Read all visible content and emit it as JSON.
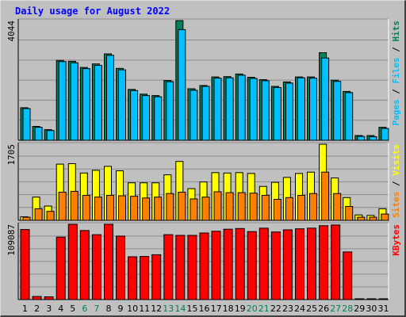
{
  "title": "Daily usage for August 2022",
  "colors": {
    "hits": "#00805c",
    "files": "#00c0ff",
    "pages": "#00c0ff",
    "visits": "#ffff00",
    "sites": "#ff8000",
    "kbytes": "#ff0000",
    "title": "#0000ff",
    "plot_bg": "#c0c0c0"
  },
  "chart_data": [
    {
      "type": "bar",
      "panel": "top",
      "max_label": "4044",
      "ylim": [
        0,
        4044
      ],
      "grid": true,
      "legend": [
        {
          "text": "Pages",
          "color": "#00c0ff"
        },
        {
          "text": " / ",
          "color": "#000000"
        },
        {
          "text": "Files",
          "color": "#00c0ff"
        },
        {
          "text": " / ",
          "color": "#000000"
        },
        {
          "text": "Hits",
          "color": "#00805c"
        }
      ],
      "categories": [
        "1",
        "2",
        "3",
        "4",
        "5",
        "6",
        "7",
        "8",
        "9",
        "10",
        "11",
        "12",
        "13",
        "14",
        "15",
        "16",
        "17",
        "18",
        "19",
        "20",
        "21",
        "22",
        "23",
        "24",
        "25",
        "26",
        "27",
        "28",
        "29",
        "30",
        "31"
      ],
      "series": [
        {
          "name": "Hits",
          "color": "#00805c",
          "values": [
            1100,
            470,
            360,
            2700,
            2670,
            2460,
            2580,
            2920,
            2430,
            1720,
            1560,
            1510,
            2020,
            4044,
            1740,
            1850,
            2140,
            2150,
            2240,
            2130,
            2050,
            1820,
            1970,
            2140,
            2140,
            2960,
            2030,
            1650,
            160,
            160,
            440
          ]
        },
        {
          "name": "Files",
          "color": "#00c0ff",
          "values": [
            1070,
            440,
            330,
            2660,
            2620,
            2420,
            2530,
            2870,
            2380,
            1680,
            1510,
            1470,
            1980,
            3740,
            1690,
            1820,
            2100,
            2110,
            2200,
            2090,
            2010,
            1780,
            1930,
            2110,
            2100,
            2780,
            1990,
            1610,
            130,
            120,
            400
          ]
        }
      ]
    },
    {
      "type": "bar",
      "panel": "middle",
      "max_label": "1705",
      "ylim": [
        0,
        1705
      ],
      "grid": true,
      "legend": [
        {
          "text": "Sites",
          "color": "#ff8000"
        },
        {
          "text": " / ",
          "color": "#000000"
        },
        {
          "text": "Visits",
          "color": "#ffff00"
        }
      ],
      "categories": [
        "1",
        "2",
        "3",
        "4",
        "5",
        "6",
        "7",
        "8",
        "9",
        "10",
        "11",
        "12",
        "13",
        "14",
        "15",
        "16",
        "17",
        "18",
        "19",
        "20",
        "21",
        "22",
        "23",
        "24",
        "25",
        "26",
        "27",
        "28",
        "29",
        "30",
        "31"
      ],
      "series": [
        {
          "name": "Visits",
          "color": "#ffff00",
          "values": [
            80,
            520,
            320,
            1260,
            1270,
            1060,
            1120,
            1210,
            1110,
            840,
            840,
            840,
            1020,
            1320,
            710,
            860,
            1070,
            1060,
            1070,
            1050,
            760,
            850,
            960,
            1050,
            1080,
            1705,
            950,
            510,
            120,
            110,
            260
          ]
        },
        {
          "name": "Sites",
          "color": "#ff8000",
          "values": [
            70,
            260,
            200,
            630,
            650,
            560,
            520,
            560,
            550,
            540,
            500,
            520,
            600,
            630,
            480,
            520,
            640,
            620,
            620,
            610,
            560,
            470,
            510,
            560,
            600,
            1080,
            600,
            310,
            70,
            70,
            140
          ]
        }
      ]
    },
    {
      "type": "bar",
      "panel": "bottom",
      "max_label": "109087",
      "ylim": [
        0,
        109087
      ],
      "grid": true,
      "legend": [
        {
          "text": "KBytes",
          "color": "#ff0000"
        }
      ],
      "categories": [
        "1",
        "2",
        "3",
        "4",
        "5",
        "6",
        "7",
        "8",
        "9",
        "10",
        "11",
        "12",
        "13",
        "14",
        "15",
        "16",
        "17",
        "18",
        "19",
        "20",
        "21",
        "22",
        "23",
        "24",
        "25",
        "26",
        "27",
        "28",
        "29",
        "30",
        "31"
      ],
      "series": [
        {
          "name": "KBytes",
          "color": "#ff0000",
          "values": [
            101500,
            4500,
            4000,
            90500,
            109087,
            100000,
            94000,
            109087,
            92000,
            62000,
            62500,
            65000,
            94000,
            93000,
            93000,
            96500,
            99000,
            102000,
            103000,
            98500,
            103500,
            98000,
            101000,
            102500,
            103500,
            107000,
            108000,
            69000,
            800,
            800,
            1000
          ]
        }
      ]
    }
  ],
  "x_labels": [
    {
      "text": "1",
      "color": "#000000"
    },
    {
      "text": "2",
      "color": "#000000"
    },
    {
      "text": "3",
      "color": "#000000"
    },
    {
      "text": "4",
      "color": "#000000"
    },
    {
      "text": "5",
      "color": "#000000"
    },
    {
      "text": "6",
      "color": "#00805c"
    },
    {
      "text": "7",
      "color": "#00805c"
    },
    {
      "text": "8",
      "color": "#000000"
    },
    {
      "text": "9",
      "color": "#000000"
    },
    {
      "text": "10",
      "color": "#000000"
    },
    {
      "text": "11",
      "color": "#000000"
    },
    {
      "text": "12",
      "color": "#000000"
    },
    {
      "text": "13",
      "color": "#00805c"
    },
    {
      "text": "14",
      "color": "#00805c"
    },
    {
      "text": "15",
      "color": "#000000"
    },
    {
      "text": "16",
      "color": "#000000"
    },
    {
      "text": "17",
      "color": "#000000"
    },
    {
      "text": "18",
      "color": "#000000"
    },
    {
      "text": "19",
      "color": "#000000"
    },
    {
      "text": "20",
      "color": "#00805c"
    },
    {
      "text": "21",
      "color": "#00805c"
    },
    {
      "text": "22",
      "color": "#000000"
    },
    {
      "text": "23",
      "color": "#000000"
    },
    {
      "text": "24",
      "color": "#000000"
    },
    {
      "text": "25",
      "color": "#000000"
    },
    {
      "text": "26",
      "color": "#000000"
    },
    {
      "text": "27",
      "color": "#00805c"
    },
    {
      "text": "28",
      "color": "#00805c"
    },
    {
      "text": "29",
      "color": "#000000"
    },
    {
      "text": "30",
      "color": "#000000"
    },
    {
      "text": "31",
      "color": "#000000"
    }
  ]
}
